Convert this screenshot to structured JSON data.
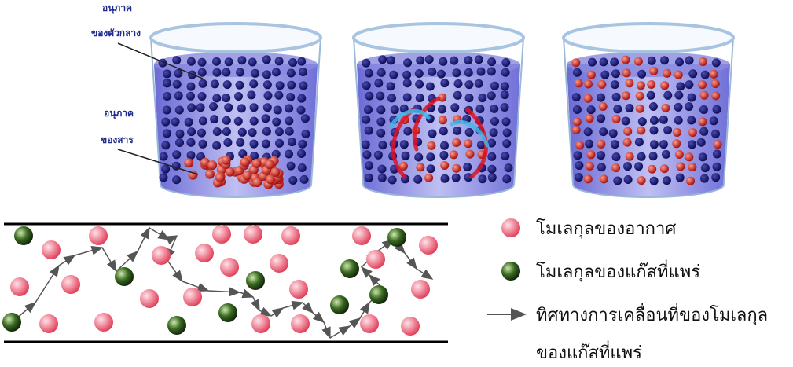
{
  "labels": {
    "medium_particle": [
      "อนุภาค",
      "ของตัวกลาง"
    ],
    "substance_particle": [
      "อนุภาค",
      "ของสาร"
    ]
  },
  "legend": {
    "air": "โมเลกุลของอากาศ",
    "gas": "โมเลกุลของแก๊สที่แพร่",
    "direction": [
      "ทิศทางการเคลื่อนที่ของโมเลกุล",
      "ของแก๊สที่แพร่"
    ]
  }
}
